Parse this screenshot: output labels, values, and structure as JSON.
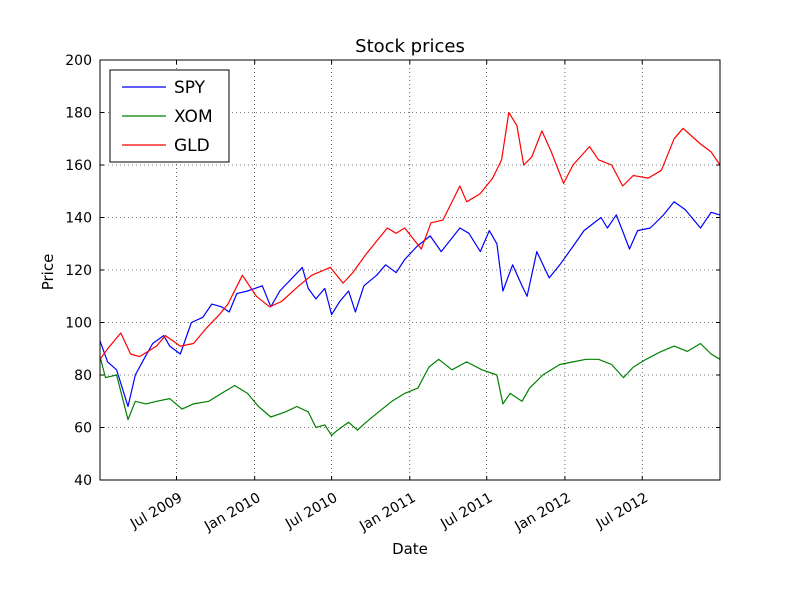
{
  "chart_data": {
    "type": "line",
    "title": "Stock prices",
    "xlabel": "Date",
    "ylabel": "Price",
    "ylim": [
      40,
      200
    ],
    "xlim": [
      "2009-01-02",
      "2012-12-31"
    ],
    "grid": true,
    "legend": "top-left",
    "yticks": [
      40,
      60,
      80,
      100,
      120,
      140,
      160,
      180,
      200
    ],
    "xticks": [
      {
        "date": "2009-07-01",
        "label": "Jul 2009"
      },
      {
        "date": "2010-01-01",
        "label": "Jan 2010"
      },
      {
        "date": "2010-07-01",
        "label": "Jul 2010"
      },
      {
        "date": "2011-01-01",
        "label": "Jan 2011"
      },
      {
        "date": "2011-07-01",
        "label": "Jul 2011"
      },
      {
        "date": "2012-01-01",
        "label": "Jan 2012"
      },
      {
        "date": "2012-07-01",
        "label": "Jul 2012"
      }
    ],
    "series": [
      {
        "name": "SPY",
        "color": "#0000ff",
        "x": [
          "2009-01-02",
          "2009-01-20",
          "2009-02-10",
          "2009-03-09",
          "2009-03-26",
          "2009-04-15",
          "2009-05-06",
          "2009-06-01",
          "2009-06-15",
          "2009-07-10",
          "2009-08-05",
          "2009-09-01",
          "2009-09-22",
          "2009-10-15",
          "2009-11-02",
          "2009-11-20",
          "2009-12-15",
          "2010-01-19",
          "2010-02-08",
          "2010-03-01",
          "2010-04-23",
          "2010-05-07",
          "2010-05-25",
          "2010-06-15",
          "2010-07-01",
          "2010-07-20",
          "2010-08-10",
          "2010-08-26",
          "2010-09-15",
          "2010-10-15",
          "2010-11-05",
          "2010-11-30",
          "2010-12-20",
          "2011-01-18",
          "2011-02-18",
          "2011-03-16",
          "2011-04-29",
          "2011-05-20",
          "2011-06-16",
          "2011-07-07",
          "2011-07-25",
          "2011-08-08",
          "2011-08-31",
          "2011-09-22",
          "2011-10-04",
          "2011-10-27",
          "2011-11-25",
          "2011-12-20",
          "2012-01-20",
          "2012-02-15",
          "2012-03-26",
          "2012-04-10",
          "2012-05-01",
          "2012-05-18",
          "2012-06-01",
          "2012-06-20",
          "2012-07-20",
          "2012-08-20",
          "2012-09-14",
          "2012-10-10",
          "2012-11-15",
          "2012-12-10",
          "2012-12-31"
        ],
        "y": [
          93,
          85,
          82,
          68,
          80,
          86,
          92,
          95,
          91,
          88,
          100,
          102,
          107,
          106,
          104,
          111,
          112,
          114,
          106,
          112,
          121,
          113,
          109,
          113,
          103,
          108,
          112,
          104,
          114,
          118,
          122,
          119,
          124,
          129,
          133,
          127,
          136,
          134,
          127,
          135,
          130,
          112,
          122,
          114,
          110,
          127,
          117,
          122,
          129,
          135,
          140,
          136,
          141,
          134,
          128,
          135,
          136,
          141,
          146,
          143,
          136,
          142,
          141
        ]
      },
      {
        "name": "XOM",
        "color": "#008000",
        "x": [
          "2009-01-02",
          "2009-01-15",
          "2009-02-10",
          "2009-03-09",
          "2009-03-26",
          "2009-04-20",
          "2009-05-15",
          "2009-06-15",
          "2009-07-14",
          "2009-08-10",
          "2009-09-15",
          "2009-10-15",
          "2009-11-15",
          "2009-12-15",
          "2010-01-10",
          "2010-02-08",
          "2010-03-15",
          "2010-04-10",
          "2010-05-07",
          "2010-05-25",
          "2010-06-15",
          "2010-07-01",
          "2010-07-15",
          "2010-08-10",
          "2010-08-31",
          "2010-09-20",
          "2010-10-20",
          "2010-11-20",
          "2010-12-20",
          "2011-01-20",
          "2011-02-15",
          "2011-03-10",
          "2011-04-10",
          "2011-05-15",
          "2011-06-20",
          "2011-07-25",
          "2011-08-08",
          "2011-08-25",
          "2011-09-22",
          "2011-10-10",
          "2011-11-10",
          "2011-12-20",
          "2012-01-20",
          "2012-02-20",
          "2012-03-20",
          "2012-04-20",
          "2012-05-18",
          "2012-06-10",
          "2012-07-10",
          "2012-08-15",
          "2012-09-14",
          "2012-10-15",
          "2012-11-15",
          "2012-12-10",
          "2012-12-31"
        ],
        "y": [
          87,
          79,
          80,
          63,
          70,
          69,
          70,
          71,
          67,
          69,
          70,
          73,
          76,
          73,
          68,
          64,
          66,
          68,
          66,
          60,
          61,
          57,
          59,
          62,
          59,
          62,
          66,
          70,
          73,
          75,
          83,
          86,
          82,
          85,
          82,
          80,
          69,
          73,
          70,
          75,
          80,
          84,
          85,
          86,
          86,
          84,
          79,
          83,
          86,
          89,
          91,
          89,
          92,
          88,
          86
        ]
      },
      {
        "name": "GLD",
        "color": "#ff0000",
        "x": [
          "2009-01-02",
          "2009-01-20",
          "2009-02-20",
          "2009-03-15",
          "2009-04-05",
          "2009-05-15",
          "2009-06-05",
          "2009-07-10",
          "2009-08-10",
          "2009-09-10",
          "2009-10-10",
          "2009-10-30",
          "2009-12-03",
          "2010-01-05",
          "2010-02-05",
          "2010-03-05",
          "2010-04-15",
          "2010-05-15",
          "2010-06-28",
          "2010-07-28",
          "2010-08-20",
          "2010-09-20",
          "2010-10-20",
          "2010-11-09",
          "2010-11-30",
          "2010-12-20",
          "2011-01-28",
          "2011-02-20",
          "2011-03-20",
          "2011-04-29",
          "2011-05-15",
          "2011-06-15",
          "2011-07-15",
          "2011-08-05",
          "2011-08-22",
          "2011-09-10",
          "2011-09-26",
          "2011-10-15",
          "2011-11-08",
          "2011-11-30",
          "2011-12-29",
          "2012-01-20",
          "2012-02-28",
          "2012-03-20",
          "2012-04-20",
          "2012-05-16",
          "2012-06-10",
          "2012-07-15",
          "2012-08-15",
          "2012-09-14",
          "2012-10-05",
          "2012-11-15",
          "2012-12-10",
          "2012-12-31"
        ],
        "y": [
          86,
          90,
          96,
          88,
          87,
          91,
          95,
          91,
          92,
          98,
          103,
          107,
          118,
          110,
          106,
          108,
          114,
          118,
          121,
          115,
          119,
          126,
          132,
          136,
          134,
          136,
          128,
          138,
          139,
          152,
          146,
          149,
          155,
          162,
          180,
          175,
          160,
          163,
          173,
          165,
          153,
          160,
          167,
          162,
          160,
          152,
          156,
          155,
          158,
          170,
          174,
          168,
          165,
          160
        ]
      }
    ]
  }
}
